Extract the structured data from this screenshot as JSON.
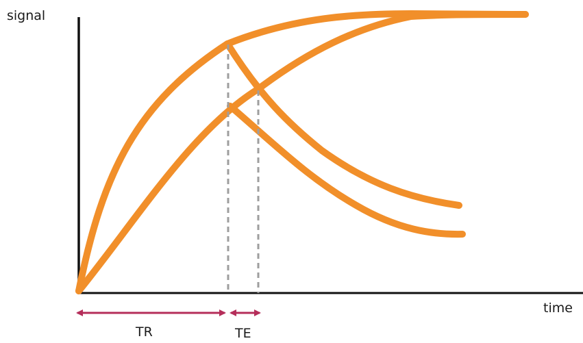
{
  "labels": {
    "y_axis": "signal",
    "x_axis": "time",
    "tr": "TR",
    "te": "TE"
  },
  "colors": {
    "curve": "#f18f2a",
    "axis": "#111111",
    "guide": "#9e9e9e",
    "arrow": "#b52e5a"
  }
}
